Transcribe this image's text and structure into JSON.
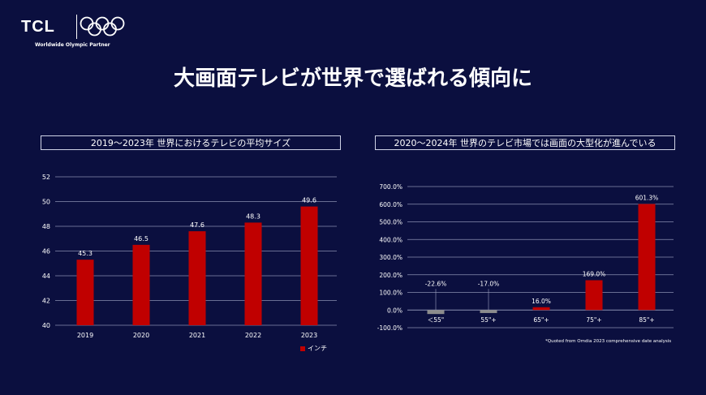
{
  "brand": {
    "name": "TCL",
    "partner": "Worldwide Olympic Partner"
  },
  "title": "大画面テレビが世界で選ばれる傾向に",
  "colors": {
    "background": "#0b0f3f",
    "bar": "#c00000",
    "negative_bar": "#8c8c8c",
    "grid": "#8a8fb0"
  },
  "chart_data": [
    {
      "type": "bar",
      "title": "2019～2023年 世界におけるテレビの平均サイズ",
      "categories": [
        "2019",
        "2020",
        "2021",
        "2022",
        "2023"
      ],
      "values": [
        45.3,
        46.5,
        47.6,
        48.3,
        49.6
      ],
      "value_labels": [
        "45.3",
        "46.5",
        "47.6",
        "48.3",
        "49.6"
      ],
      "ylim": [
        40,
        52
      ],
      "yticks": [
        "40",
        "42",
        "44",
        "46",
        "48",
        "50",
        "52"
      ],
      "legend": "インチ",
      "legend_position": "bottom-right",
      "grid": true
    },
    {
      "type": "bar",
      "title": "2020～2024年 世界のテレビ市場では画面の大型化が進んでいる",
      "categories": [
        "＜55\"",
        "55\"+",
        "65\"+",
        "75\"+",
        "85\"+"
      ],
      "values": [
        -22.6,
        -17.0,
        16.0,
        169.0,
        601.3
      ],
      "value_labels": [
        "-22.6%",
        "-17.0%",
        "16.0%",
        "169.0%",
        "601.3%"
      ],
      "ylim": [
        -100,
        700
      ],
      "yticks": [
        "-100.0%",
        "0.0%",
        "100.0%",
        "200.0%",
        "300.0%",
        "400.0%",
        "500.0%",
        "600.0%",
        "700.0%"
      ],
      "grid": true
    }
  ],
  "footnote": "*Quoted from Omdia 2023 comprehensive date analysis"
}
